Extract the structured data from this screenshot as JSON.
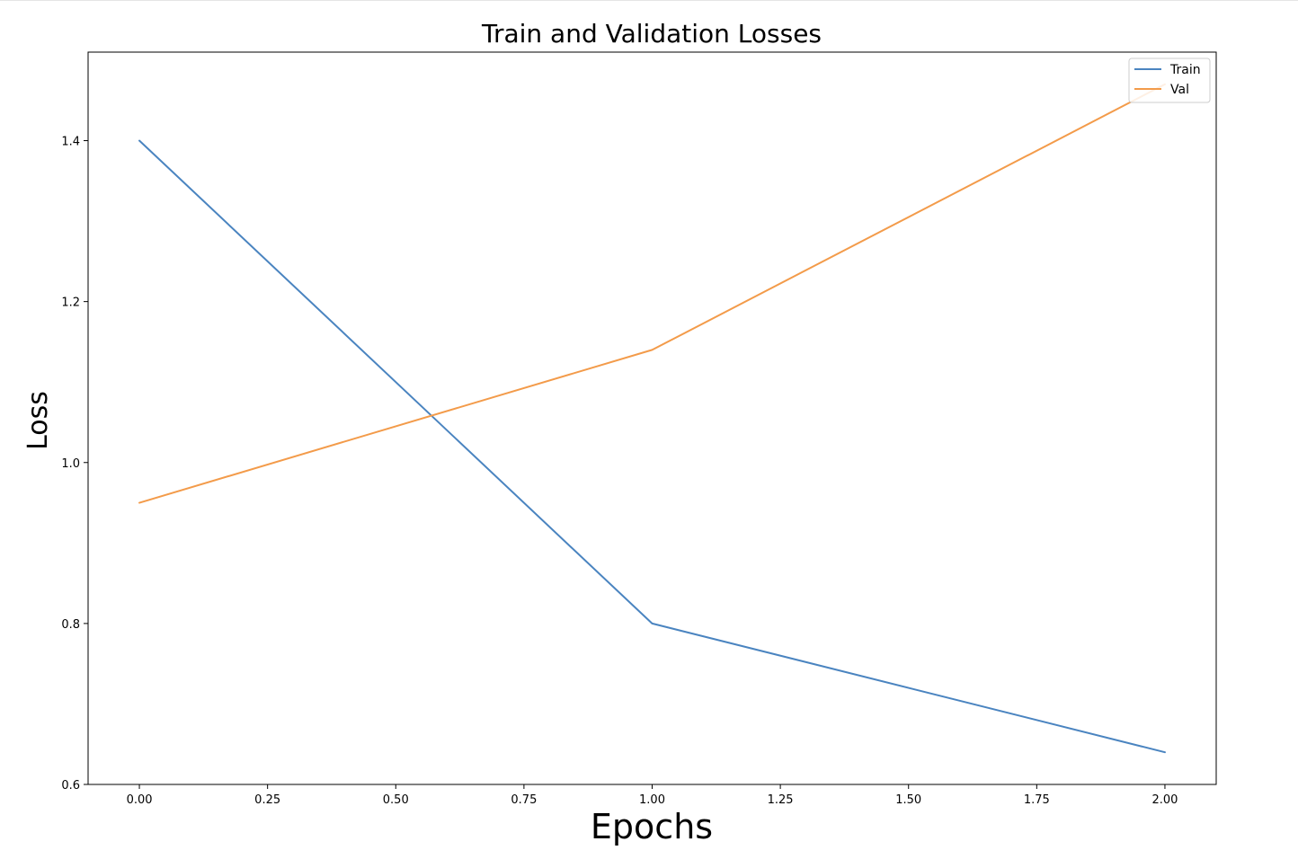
{
  "chart_data": {
    "type": "line",
    "title": "Train and Validation Losses",
    "xlabel": "Epochs",
    "ylabel": "Loss",
    "xlim": [
      -0.1,
      2.1
    ],
    "ylim": [
      0.6,
      1.51
    ],
    "x_ticks": [
      0.0,
      0.25,
      0.5,
      0.75,
      1.0,
      1.25,
      1.5,
      1.75,
      2.0
    ],
    "x_tick_labels": [
      "0.00",
      "0.25",
      "0.50",
      "0.75",
      "1.00",
      "1.25",
      "1.50",
      "1.75",
      "2.00"
    ],
    "y_ticks": [
      0.6,
      0.8,
      1.0,
      1.2,
      1.4
    ],
    "y_tick_labels": [
      "0.6",
      "0.8",
      "1.0",
      "1.2",
      "1.4"
    ],
    "grid": false,
    "legend_position": "top-right",
    "x": [
      0,
      1,
      2
    ],
    "series": [
      {
        "name": "Train",
        "values": [
          1.4,
          0.8,
          0.64
        ],
        "color": "#4a84c0"
      },
      {
        "name": "Val",
        "values": [
          0.95,
          1.14,
          1.47
        ],
        "color": "#f39b4a"
      }
    ]
  }
}
